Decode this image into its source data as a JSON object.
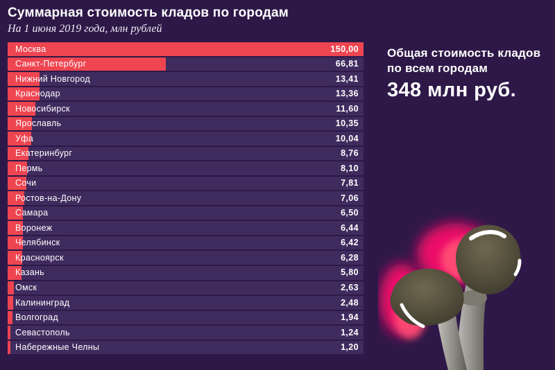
{
  "header": {
    "title": "Суммарная стоимость кладов по городам",
    "subtitle": "На 1 июня 2019 года, млн рублей"
  },
  "summary": {
    "label_line1": "Общая стоимость кладов",
    "label_line2": "по всем городам",
    "total": "348 млн руб."
  },
  "chart_data": {
    "type": "bar",
    "orientation": "horizontal",
    "title": "Суммарная стоимость кладов по городам",
    "subtitle": "На 1 июня 2019 года, млн рублей",
    "unit": "млн рублей",
    "xlim": [
      0,
      150
    ],
    "grid": false,
    "legend": false,
    "categories": [
      "Москва",
      "Санкт-Петербург",
      "Нижний Новгород",
      "Краснодар",
      "Новосибирск",
      "Ярославль",
      "Уфа",
      "Екатеринбург",
      "Пермь",
      "Сочи",
      "Ростов-на-Дону",
      "Самара",
      "Воронеж",
      "Челябинск",
      "Красноярск",
      "Казань",
      "Омск",
      "Калининград",
      "Волгоград",
      "Севастополь",
      "Набережные Челны"
    ],
    "values": [
      150.0,
      66.81,
      13.41,
      13.36,
      11.6,
      10.35,
      10.04,
      8.76,
      8.1,
      7.81,
      7.06,
      6.5,
      6.44,
      6.42,
      6.28,
      5.8,
      2.63,
      2.48,
      1.94,
      1.24,
      1.2
    ],
    "value_labels": [
      "150,00",
      "66,81",
      "13,41",
      "13,36",
      "11,60",
      "10,35",
      "10,04",
      "8,76",
      "8,10",
      "7,81",
      "7,06",
      "6,50",
      "6,44",
      "6,42",
      "6,28",
      "5,80",
      "2,63",
      "2,48",
      "1,94",
      "1,24",
      "1,20"
    ],
    "total_label": "348 млн руб.",
    "total_value": 348
  },
  "colors": {
    "background": "#2e1848",
    "row_strip": "#3f2b5e",
    "bar": "#ee4551",
    "text": "#ffffff",
    "glow_magenta": "#ec0868",
    "glow_pink": "#ff4d75"
  },
  "illustration": {
    "name": "two-mushrooms-with-pink-glow"
  }
}
